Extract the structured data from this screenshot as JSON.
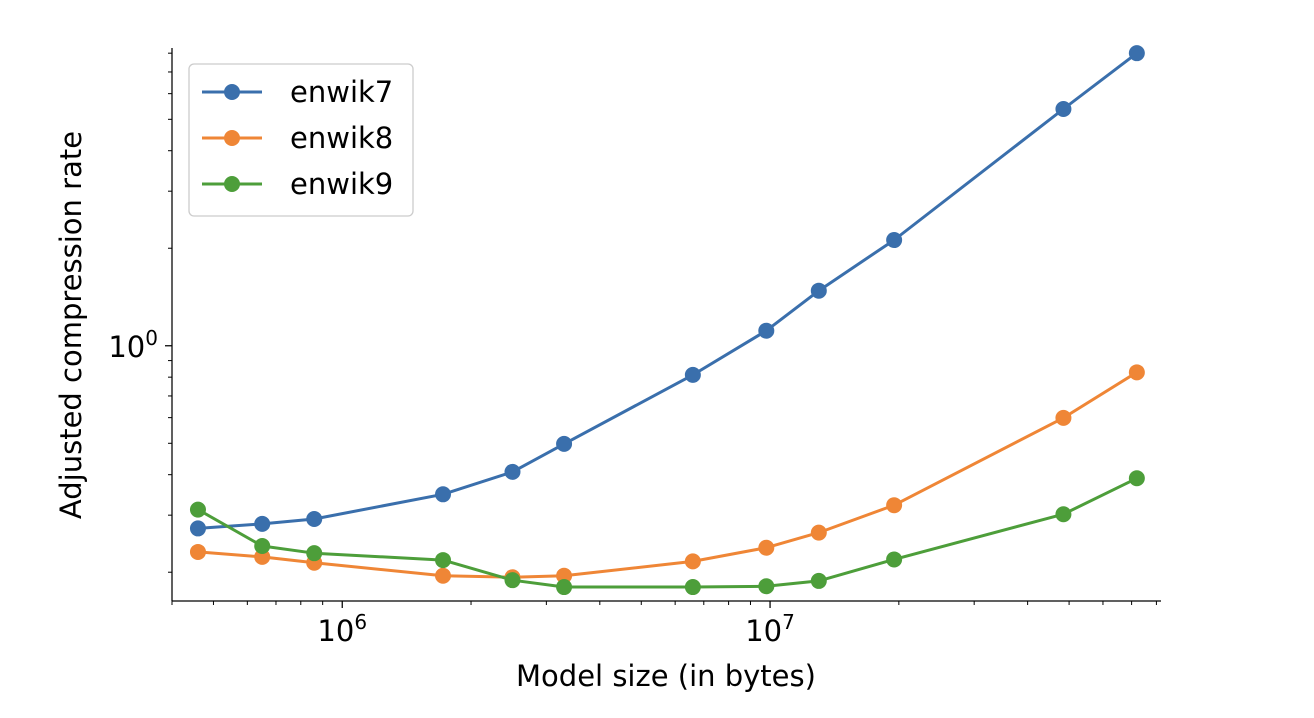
{
  "chart_data": {
    "type": "line",
    "xlabel": "Model size (in bytes)",
    "ylabel": "Adjusted compression rate",
    "xscale": "log",
    "yscale": "log",
    "xlim": [
      400000,
      82000000
    ],
    "ylim": [
      0.163,
      8.3
    ],
    "xticks": [
      {
        "base": "10",
        "exp": "6",
        "value": 1000000
      },
      {
        "base": "10",
        "exp": "7",
        "value": 10000000
      }
    ],
    "yticks": [
      {
        "base": "10",
        "exp": "0",
        "value": 1
      }
    ],
    "grid": false,
    "legend_position": "top-left",
    "series": [
      {
        "name": "enwik7",
        "color": "#3a6fac",
        "x": [
          460000,
          650000,
          860000,
          1720000,
          2500000,
          3300000,
          6600000,
          9800000,
          13000000,
          19500000,
          48500000,
          72000000
        ],
        "y": [
          0.273,
          0.282,
          0.292,
          0.348,
          0.408,
          0.498,
          0.813,
          1.113,
          1.479,
          2.12,
          5.38,
          8.0
        ]
      },
      {
        "name": "enwik8",
        "color": "#ef8636",
        "x": [
          460000,
          650000,
          860000,
          1720000,
          2500000,
          3300000,
          6600000,
          9800000,
          13000000,
          19500000,
          48500000,
          72000000
        ],
        "y": [
          0.231,
          0.223,
          0.214,
          0.195,
          0.193,
          0.195,
          0.216,
          0.238,
          0.265,
          0.322,
          0.599,
          0.828
        ]
      },
      {
        "name": "enwik9",
        "color": "#4d9e3a",
        "x": [
          460000,
          650000,
          860000,
          1720000,
          2500000,
          3300000,
          6600000,
          9800000,
          13000000,
          19500000,
          48500000,
          72000000
        ],
        "y": [
          0.312,
          0.241,
          0.229,
          0.218,
          0.189,
          0.18,
          0.18,
          0.181,
          0.188,
          0.219,
          0.302,
          0.39
        ]
      }
    ]
  }
}
